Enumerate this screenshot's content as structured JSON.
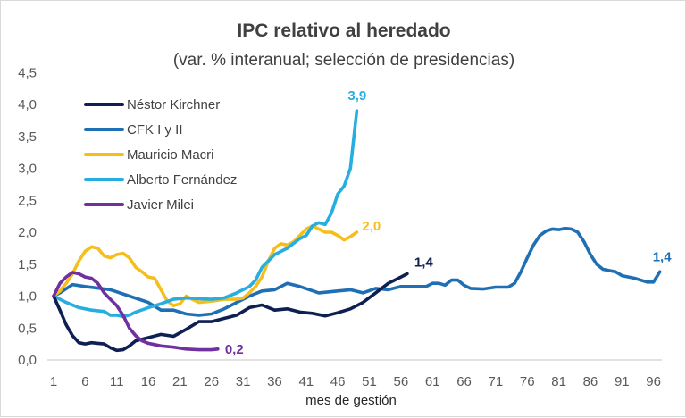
{
  "chart_data": {
    "type": "line",
    "title": "IPC relativo al heredado",
    "subtitle": "(var. % interanual; selección de presidencias)",
    "xlabel": "mes de gestión",
    "ylabel": "",
    "xlim": [
      1,
      97
    ],
    "ylim": [
      0,
      4.5
    ],
    "xticks": [
      1,
      6,
      11,
      16,
      21,
      26,
      31,
      36,
      41,
      46,
      51,
      56,
      61,
      66,
      71,
      76,
      81,
      86,
      91,
      96
    ],
    "yticks": [
      0,
      0.5,
      1,
      1.5,
      2,
      2.5,
      3,
      3.5,
      4,
      4.5
    ],
    "ytick_labels": [
      "0,0",
      "0,5",
      "1,0",
      "1,5",
      "2,0",
      "2,5",
      "3,0",
      "3,5",
      "4,0",
      "4,5"
    ],
    "grid": false,
    "legend_position": "top-left",
    "series": [
      {
        "name": "Néstor Kirchner",
        "color": "#0e1f52",
        "end_label": "1,4",
        "points": [
          [
            1,
            1.0
          ],
          [
            2,
            0.78
          ],
          [
            3,
            0.55
          ],
          [
            4,
            0.38
          ],
          [
            5,
            0.27
          ],
          [
            6,
            0.25
          ],
          [
            7,
            0.27
          ],
          [
            8,
            0.26
          ],
          [
            9,
            0.25
          ],
          [
            10,
            0.19
          ],
          [
            11,
            0.15
          ],
          [
            12,
            0.16
          ],
          [
            13,
            0.22
          ],
          [
            14,
            0.3
          ],
          [
            16,
            0.35
          ],
          [
            18,
            0.4
          ],
          [
            20,
            0.37
          ],
          [
            22,
            0.48
          ],
          [
            24,
            0.6
          ],
          [
            26,
            0.6
          ],
          [
            28,
            0.65
          ],
          [
            30,
            0.7
          ],
          [
            32,
            0.82
          ],
          [
            34,
            0.86
          ],
          [
            36,
            0.78
          ],
          [
            38,
            0.8
          ],
          [
            40,
            0.75
          ],
          [
            42,
            0.73
          ],
          [
            44,
            0.69
          ],
          [
            46,
            0.74
          ],
          [
            48,
            0.8
          ],
          [
            50,
            0.9
          ],
          [
            52,
            1.05
          ],
          [
            54,
            1.2
          ],
          [
            56,
            1.3
          ],
          [
            57,
            1.35
          ]
        ]
      },
      {
        "name": "CFK I y II",
        "color": "#1f6fb4",
        "end_label": "1,4",
        "points": [
          [
            1,
            1.0
          ],
          [
            2,
            1.05
          ],
          [
            4,
            1.18
          ],
          [
            6,
            1.15
          ],
          [
            10,
            1.1
          ],
          [
            13,
            1.0
          ],
          [
            16,
            0.9
          ],
          [
            18,
            0.78
          ],
          [
            20,
            0.78
          ],
          [
            22,
            0.72
          ],
          [
            24,
            0.7
          ],
          [
            26,
            0.72
          ],
          [
            28,
            0.8
          ],
          [
            30,
            0.9
          ],
          [
            32,
            1.0
          ],
          [
            34,
            1.08
          ],
          [
            36,
            1.1
          ],
          [
            38,
            1.2
          ],
          [
            40,
            1.15
          ],
          [
            43,
            1.05
          ],
          [
            46,
            1.08
          ],
          [
            48,
            1.1
          ],
          [
            50,
            1.05
          ],
          [
            52,
            1.12
          ],
          [
            54,
            1.1
          ],
          [
            56,
            1.15
          ],
          [
            60,
            1.15
          ],
          [
            61,
            1.2
          ],
          [
            62,
            1.2
          ],
          [
            63,
            1.17
          ],
          [
            64,
            1.25
          ],
          [
            65,
            1.25
          ],
          [
            66,
            1.17
          ],
          [
            67,
            1.12
          ],
          [
            69,
            1.11
          ],
          [
            71,
            1.14
          ],
          [
            73,
            1.14
          ],
          [
            74,
            1.2
          ],
          [
            75,
            1.38
          ],
          [
            76,
            1.6
          ],
          [
            77,
            1.8
          ],
          [
            78,
            1.95
          ],
          [
            79,
            2.02
          ],
          [
            80,
            2.05
          ],
          [
            81,
            2.04
          ],
          [
            82,
            2.06
          ],
          [
            83,
            2.05
          ],
          [
            84,
            2.0
          ],
          [
            85,
            1.85
          ],
          [
            86,
            1.65
          ],
          [
            87,
            1.5
          ],
          [
            88,
            1.42
          ],
          [
            90,
            1.38
          ],
          [
            91,
            1.32
          ],
          [
            93,
            1.28
          ],
          [
            95,
            1.22
          ],
          [
            96,
            1.22
          ],
          [
            97,
            1.38
          ]
        ]
      },
      {
        "name": "Mauricio Macri",
        "color": "#f5be1a",
        "end_label": "2,0",
        "points": [
          [
            1,
            1.0
          ],
          [
            2,
            1.08
          ],
          [
            3,
            1.2
          ],
          [
            4,
            1.35
          ],
          [
            5,
            1.55
          ],
          [
            6,
            1.7
          ],
          [
            7,
            1.77
          ],
          [
            8,
            1.75
          ],
          [
            9,
            1.63
          ],
          [
            10,
            1.6
          ],
          [
            11,
            1.65
          ],
          [
            12,
            1.67
          ],
          [
            13,
            1.6
          ],
          [
            14,
            1.45
          ],
          [
            15,
            1.38
          ],
          [
            16,
            1.3
          ],
          [
            17,
            1.28
          ],
          [
            18,
            1.1
          ],
          [
            19,
            0.92
          ],
          [
            20,
            0.85
          ],
          [
            21,
            0.88
          ],
          [
            22,
            1.0
          ],
          [
            23,
            0.95
          ],
          [
            24,
            0.9
          ],
          [
            26,
            0.92
          ],
          [
            28,
            0.95
          ],
          [
            30,
            0.95
          ],
          [
            31,
            0.97
          ],
          [
            32,
            1.05
          ],
          [
            33,
            1.15
          ],
          [
            34,
            1.3
          ],
          [
            35,
            1.55
          ],
          [
            36,
            1.75
          ],
          [
            37,
            1.82
          ],
          [
            38,
            1.8
          ],
          [
            39,
            1.85
          ],
          [
            40,
            1.95
          ],
          [
            41,
            2.05
          ],
          [
            42,
            2.1
          ],
          [
            43,
            2.05
          ],
          [
            44,
            2.0
          ],
          [
            45,
            2.0
          ],
          [
            46,
            1.95
          ],
          [
            47,
            1.88
          ],
          [
            48,
            1.93
          ],
          [
            49,
            2.0
          ]
        ]
      },
      {
        "name": "Alberto Fernández",
        "color": "#27aee0",
        "end_label": "3,9",
        "points": [
          [
            1,
            1.0
          ],
          [
            3,
            0.9
          ],
          [
            5,
            0.82
          ],
          [
            7,
            0.78
          ],
          [
            9,
            0.76
          ],
          [
            10,
            0.7
          ],
          [
            11,
            0.7
          ],
          [
            12,
            0.68
          ],
          [
            13,
            0.7
          ],
          [
            14,
            0.75
          ],
          [
            16,
            0.82
          ],
          [
            18,
            0.88
          ],
          [
            20,
            0.95
          ],
          [
            22,
            0.97
          ],
          [
            24,
            0.96
          ],
          [
            26,
            0.95
          ],
          [
            28,
            0.97
          ],
          [
            30,
            1.05
          ],
          [
            32,
            1.15
          ],
          [
            33,
            1.25
          ],
          [
            34,
            1.45
          ],
          [
            36,
            1.65
          ],
          [
            38,
            1.75
          ],
          [
            40,
            1.9
          ],
          [
            41,
            1.95
          ],
          [
            42,
            2.1
          ],
          [
            43,
            2.15
          ],
          [
            44,
            2.12
          ],
          [
            45,
            2.3
          ],
          [
            46,
            2.6
          ],
          [
            47,
            2.72
          ],
          [
            48,
            3.0
          ],
          [
            49,
            3.9
          ]
        ]
      },
      {
        "name": "Javier Milei",
        "color": "#7030a0",
        "end_label": "0,2",
        "points": [
          [
            1,
            1.0
          ],
          [
            2,
            1.2
          ],
          [
            3,
            1.3
          ],
          [
            4,
            1.37
          ],
          [
            5,
            1.35
          ],
          [
            6,
            1.3
          ],
          [
            7,
            1.28
          ],
          [
            8,
            1.2
          ],
          [
            9,
            1.05
          ],
          [
            10,
            0.95
          ],
          [
            11,
            0.85
          ],
          [
            12,
            0.7
          ],
          [
            13,
            0.5
          ],
          [
            14,
            0.38
          ],
          [
            15,
            0.3
          ],
          [
            16,
            0.26
          ],
          [
            17,
            0.24
          ],
          [
            18,
            0.22
          ],
          [
            20,
            0.2
          ],
          [
            22,
            0.17
          ],
          [
            24,
            0.16
          ],
          [
            26,
            0.16
          ],
          [
            27,
            0.17
          ]
        ]
      }
    ]
  }
}
